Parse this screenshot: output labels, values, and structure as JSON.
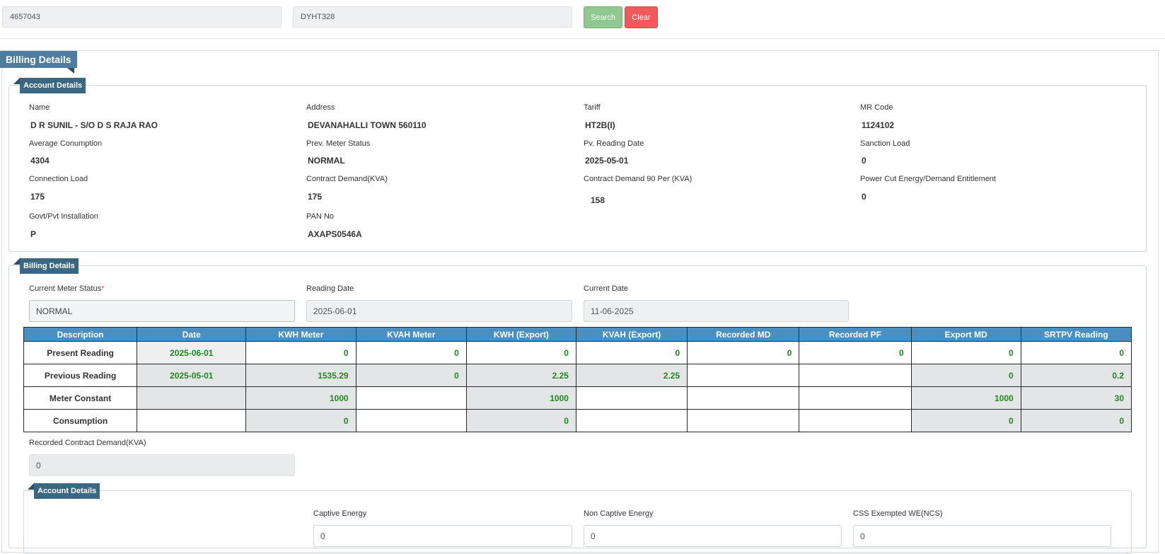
{
  "search": {
    "account_value": "4657043",
    "code_value": "DYHT328",
    "search_label": "Search",
    "clear_label": "Clear"
  },
  "page_title": "Billing Details",
  "account": {
    "title": "Account Details",
    "fields": [
      {
        "label": "Name",
        "value": "D R SUNIL - S/O D S RAJA RAO"
      },
      {
        "label": "Address",
        "value": "DEVANAHALLI TOWN 560110"
      },
      {
        "label": "Tariff",
        "value": "HT2B(I)"
      },
      {
        "label": "MR Code",
        "value": "1124102"
      },
      {
        "label": "Average Conumption",
        "value": "4304"
      },
      {
        "label": "Prev. Meter Status",
        "value": "NORMAL"
      },
      {
        "label": "Pv. Reading Date",
        "value": "2025-05-01"
      },
      {
        "label": "Sanction Load",
        "value": "0"
      },
      {
        "label": "Connection Load",
        "value": "175"
      },
      {
        "label": "Contract Demand(KVA)",
        "value": "175"
      },
      {
        "label": "Contract Demand 90 Per (KVA)",
        "value": "158"
      },
      {
        "label": "Power Cut Energy/Demand Entitlement",
        "value": "0"
      },
      {
        "label": "Govt/Pvt Installation",
        "value": "P"
      },
      {
        "label": "PAN No",
        "value": "AXAPS0546A"
      }
    ]
  },
  "billing": {
    "title": "Billing Details",
    "current_meter_status_label": "Current Meter Status",
    "required_mark": "*",
    "current_meter_status_value": "NORMAL",
    "reading_date_label": "Reading Date",
    "reading_date_value": "2025-06-01",
    "current_date_label": "Current Date",
    "current_date_value": "11-06-2025",
    "table": {
      "headers": [
        "Description",
        "Date",
        "KWH Meter",
        "KVAH Meter",
        "KWH (Export)",
        "KVAH (Export)",
        "Recorded MD",
        "Recorded PF",
        "Export MD",
        "SRTPV Reading"
      ],
      "rows": [
        [
          "Present Reading",
          "2025-06-01",
          "0",
          "0",
          "0",
          "0",
          "0",
          "0",
          "0",
          "0"
        ],
        [
          "Previous Reading",
          "2025-05-01",
          "1535.29",
          "0",
          "2.25",
          "2.25",
          "",
          "",
          "0",
          "0.2"
        ],
        [
          "Meter Constant",
          "",
          "1000",
          "",
          "1000",
          "",
          "",
          "",
          "1000",
          "30"
        ],
        [
          "Consumption",
          "",
          "0",
          "",
          "0",
          "",
          "",
          "",
          "0",
          "0"
        ]
      ]
    },
    "recorded_cd_label": "Recorded Contract Demand(KVA)",
    "recorded_cd_value": "0"
  },
  "account2": {
    "title": "Account Details",
    "captive_label": "Captive Energy",
    "captive_value": "0",
    "non_captive_label": "Non Captive Energy",
    "non_captive_value": "0",
    "css_label": "CSS Exempted WE(NCS)",
    "css_value": "0"
  }
}
